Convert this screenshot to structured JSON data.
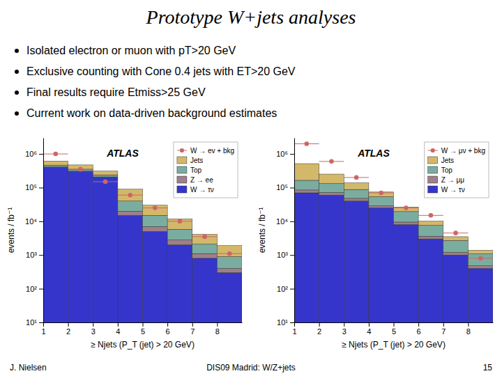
{
  "title": "Prototype W+jets analyses",
  "annotations": [
    [
      "Isolated electron or muon with pT>20 GeV",
      "Exclusive counting with Cone 0.4 jets with ET>20 GeV",
      "Final results require Etmiss>25 GeV",
      "Current work on data-driven background estimates"
    ],
    [
      "J. Nielsen",
      "DIS09 Madrid: W/Z+jets",
      "15"
    ]
  ],
  "chart_data": [
    {
      "type": "histogram",
      "stacked": true,
      "log": "y",
      "grid": false,
      "legend": "upper right",
      "annotations": [
        "ATLAS"
      ],
      "xlabel": "≥ Njets (P_T (jet) > 20 GeV)",
      "ylabel": "events / fb⁻¹",
      "bins": [
        1,
        2,
        3,
        4,
        5,
        6,
        7,
        8,
        9
      ],
      "xlim": [
        1,
        9
      ],
      "xticks": [
        1,
        2,
        3,
        4,
        5,
        6,
        7,
        8
      ],
      "ylim": [
        10,
        3000000
      ],
      "yticks": [
        {
          "value": 10,
          "label": "10¹"
        },
        {
          "value": 100,
          "label": "10²"
        },
        {
          "value": 1000,
          "label": "10³"
        },
        {
          "value": 10000,
          "label": "10⁴"
        },
        {
          "value": 100000,
          "label": "10⁵"
        },
        {
          "value": 1000000,
          "label": "10⁶"
        }
      ],
      "series": [
        {
          "name": "W → ev + bkg",
          "type": "scatter",
          "marker": "circle",
          "color": "#cc6666",
          "values": [
            1000000,
            350000,
            150000,
            60000,
            25000,
            10000,
            3500,
            1100
          ]
        },
        {
          "name": "Jets",
          "color": "#d4b86a",
          "values": [
            150000,
            120000,
            70000,
            50000,
            15000,
            6000,
            2000,
            1000
          ]
        },
        {
          "name": "Top",
          "color": "#7aada0",
          "values": [
            50000,
            40000,
            30000,
            20000,
            8000,
            3000,
            1000,
            500
          ]
        },
        {
          "name": "Z → ee",
          "color": "#9e7f8a",
          "values": [
            15000,
            12000,
            9000,
            5000,
            2000,
            800,
            300,
            100
          ]
        },
        {
          "name": "W → τν",
          "color": "#3535cc",
          "values": [
            400000,
            300000,
            200000,
            15000,
            5000,
            2000,
            800,
            300
          ]
        }
      ]
    },
    {
      "type": "histogram",
      "stacked": true,
      "log": "y",
      "grid": false,
      "legend": "upper right",
      "annotations": [
        "ATLAS"
      ],
      "xlabel": "≥ Njets (P_T (jet) > 20 GeV)",
      "ylabel": "events / fb⁻¹",
      "bins": [
        1,
        2,
        3,
        4,
        5,
        6,
        7,
        8,
        9
      ],
      "xlim": [
        1,
        9
      ],
      "xticks": [
        1,
        2,
        3,
        4,
        5,
        6,
        7,
        8
      ],
      "ylim": [
        10,
        3000000
      ],
      "yticks": [
        {
          "value": 10,
          "label": "10¹"
        },
        {
          "value": 100,
          "label": "10²"
        },
        {
          "value": 1000,
          "label": "10³"
        },
        {
          "value": 10000,
          "label": "10⁴"
        },
        {
          "value": 100000,
          "label": "10⁵"
        },
        {
          "value": 1000000,
          "label": "10⁶"
        }
      ],
      "series": [
        {
          "name": "W → μν + bkg",
          "type": "scatter",
          "marker": "circle",
          "color": "#cc6666",
          "values": [
            2000000,
            600000,
            200000,
            70000,
            25000,
            15000,
            4500,
            800
          ]
        },
        {
          "name": "Jets",
          "color": "#d4b86a",
          "values": [
            350000,
            120000,
            50000,
            20000,
            7000,
            2500,
            800,
            300
          ]
        },
        {
          "name": "Top",
          "color": "#7aada0",
          "values": [
            80000,
            60000,
            40000,
            25000,
            10000,
            4000,
            1500,
            600
          ]
        },
        {
          "name": "Z → μμ",
          "color": "#9e7f8a",
          "values": [
            15000,
            12000,
            8000,
            4000,
            1500,
            600,
            200,
            80
          ]
        },
        {
          "name": "W → τν",
          "color": "#3535cc",
          "values": [
            70000,
            60000,
            40000,
            25000,
            8000,
            3000,
            1000,
            400
          ]
        }
      ]
    }
  ]
}
